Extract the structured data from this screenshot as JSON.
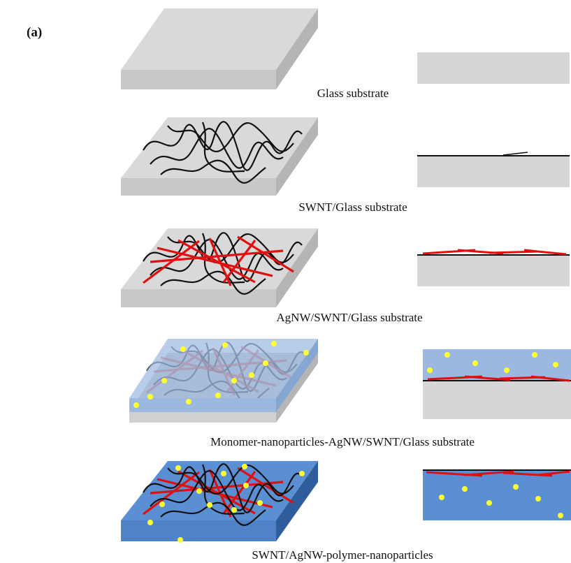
{
  "figure_label": "(a)",
  "rows": [
    {
      "caption": "Glass substrate"
    },
    {
      "caption": "SWNT/Glass substrate"
    },
    {
      "caption": "AgNW/SWNT/Glass substrate"
    },
    {
      "caption": "Monomer-nanoparticles-AgNW/SWNT/Glass substrate"
    },
    {
      "caption": "SWNT/AgNW-polymer-nanoparticles"
    }
  ]
}
